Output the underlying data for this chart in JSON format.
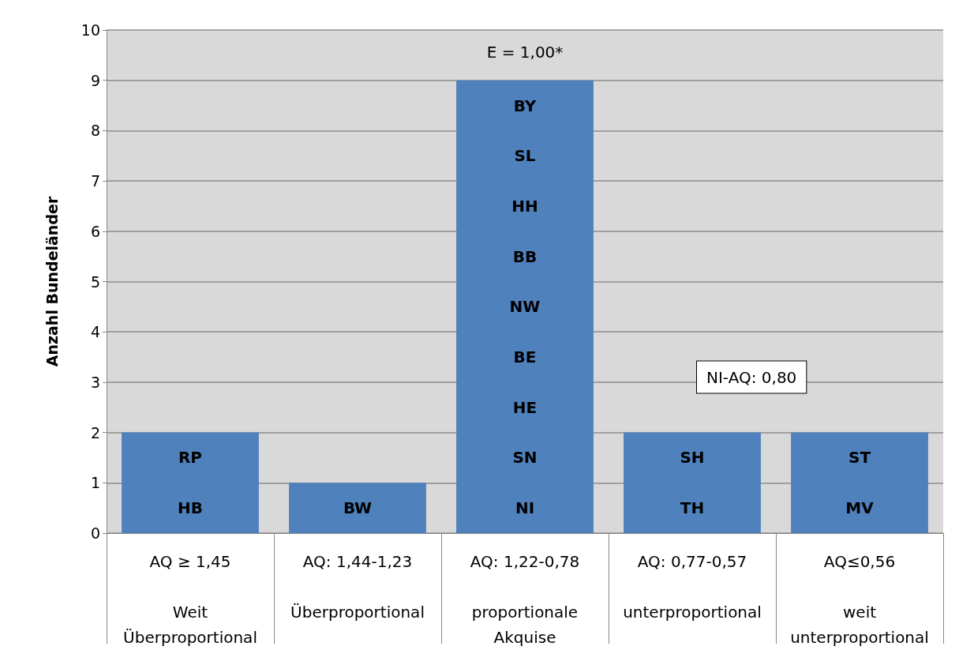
{
  "chart_data": {
    "type": "bar",
    "ylabel": "Anzahl Bundeländer",
    "categories": [
      "AQ ≥ 1,45\n\nWeit\nÜberproportional",
      "AQ: 1,44-1,23\n\nÜberproportional\n",
      "AQ: 1,22-0,78\n\nproportionale\nAkquise",
      "AQ: 0,77-0,57\n\nunterproportional\n",
      "AQ≤0,56\n\nweit\nunterproportional"
    ],
    "values": [
      2,
      1,
      9,
      2,
      2
    ],
    "color": "#4f81bd",
    "ylim": [
      0,
      10
    ],
    "yticks": [
      0,
      1,
      2,
      3,
      4,
      5,
      6,
      7,
      8,
      9,
      10
    ],
    "grid": "y",
    "annotations": [
      "RP",
      "HB",
      "BW",
      "BY",
      "SL",
      "HH",
      "BB",
      "NW",
      "BE",
      "HE",
      "SN",
      "NI",
      "SH",
      "TH",
      "ST",
      "MV",
      "E = 1,00*",
      "NI-AQ: 0,80"
    ]
  }
}
